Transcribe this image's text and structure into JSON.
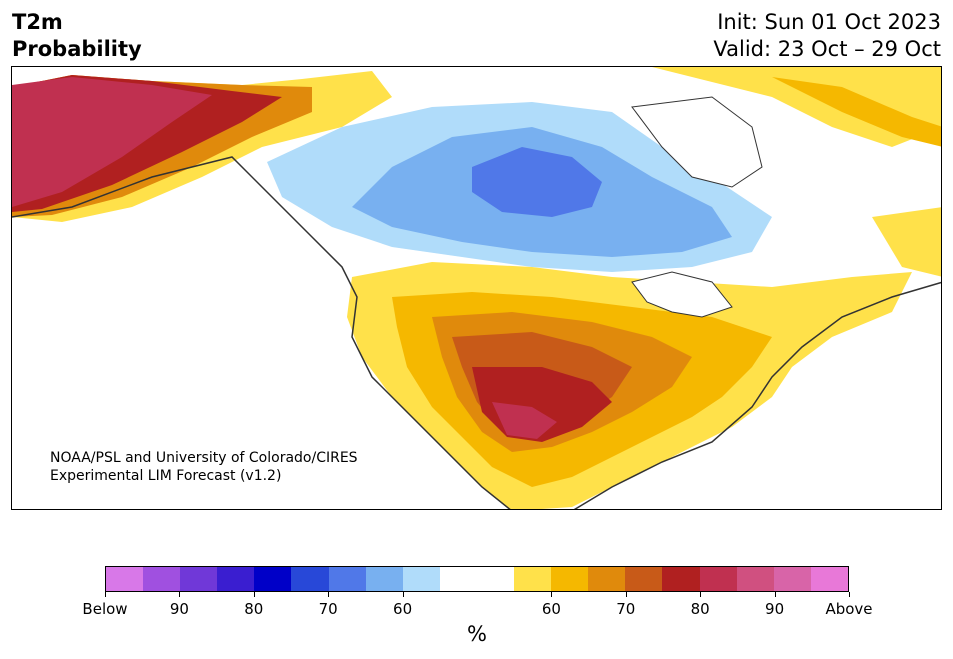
{
  "header": {
    "title": "T2m\nProbability",
    "init": "Init: Sun 01 Oct 2023",
    "valid": "Valid: 23 Oct – 29 Oct"
  },
  "map": {
    "credit_line1": "NOAA/PSL and University of Colorado/CIRES",
    "credit_line2": "Experimental LIM Forecast (v1.2)"
  },
  "colorbar": {
    "unit": "%",
    "colors": [
      "#d878e8",
      "#a050e0",
      "#7038d8",
      "#3a1ed0",
      "#0000c8",
      "#2848d8",
      "#5078e8",
      "#78b0f0",
      "#b0dcfa",
      "#ffffff",
      "#ffffff",
      "#ffe14a",
      "#f5b800",
      "#e08a0c",
      "#c85a18",
      "#b02020",
      "#c03050",
      "#d05080",
      "#d864a8",
      "#e878d8"
    ],
    "labels": [
      "Below",
      "90",
      "80",
      "70",
      "60",
      "60",
      "70",
      "80",
      "90",
      "Above"
    ]
  }
}
